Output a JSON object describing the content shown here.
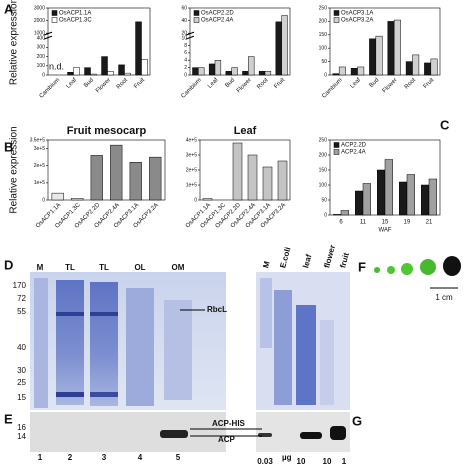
{
  "chart_data": [
    {
      "type": "bar",
      "ylabel": "Relative expression",
      "categories": [
        "Cambium",
        "Leaf",
        "Bud",
        "Flower",
        "Root",
        "Fruit"
      ],
      "series": [
        {
          "name": "OsACP1.1A",
          "color": "#1a1a1a",
          "values": [
            null,
            30,
            80,
            200,
            110,
            1900
          ]
        },
        {
          "name": "OsACP1.3C",
          "color": "#ffffff",
          "values": [
            null,
            80,
            10,
            40,
            20,
            170
          ]
        }
      ],
      "ylim": [
        0,
        3000
      ],
      "ybreak": [
        400,
        1000
      ],
      "yticks": [
        0,
        100,
        200,
        300,
        400,
        1000,
        2000,
        3000
      ],
      "annotations": [
        {
          "text": "n.d.",
          "category": "Cambium"
        }
      ]
    },
    {
      "type": "bar",
      "categories": [
        "Cambium",
        "Leaf",
        "Bud",
        "Flower",
        "Root",
        "Fruit"
      ],
      "series": [
        {
          "name": "OsACP2.2D",
          "color": "#1a1a1a",
          "values": [
            2,
            3,
            1,
            1,
            1,
            38
          ]
        },
        {
          "name": "OsACP2.4A",
          "color": "#d0d0d0",
          "values": [
            2,
            4,
            2,
            5,
            1,
            48
          ]
        }
      ],
      "ylim": [
        0,
        60
      ],
      "ybreak": [
        10,
        20
      ],
      "yticks": [
        0,
        2,
        4,
        6,
        8,
        10,
        20,
        40,
        60
      ]
    },
    {
      "type": "bar",
      "categories": [
        "Cambium",
        "Leaf",
        "Bud",
        "Flower",
        "Root",
        "Fruit"
      ],
      "series": [
        {
          "name": "OsACP3.1A",
          "color": "#1a1a1a",
          "values": [
            5,
            25,
            135,
            200,
            50,
            45
          ]
        },
        {
          "name": "OsACP3.2A",
          "color": "#d0d0d0",
          "values": [
            30,
            30,
            145,
            205,
            75,
            60
          ]
        }
      ],
      "ylim": [
        0,
        250
      ],
      "yticks": [
        0,
        50,
        100,
        150,
        200,
        250
      ]
    },
    {
      "type": "bar",
      "title": "Fruit mesocarp",
      "ylabel": "Relative expression",
      "categories": [
        "OsACP1.1A",
        "OsACP1.3C",
        "OsACP2.2D",
        "OsACP2.4A",
        "OsACP3.1A",
        "OsACP3.2A"
      ],
      "values": [
        40000,
        10000,
        260000,
        320000,
        220000,
        250000
      ],
      "colors": [
        "#e8e8e8",
        "#e8e8e8",
        "#8a8a8a",
        "#8a8a8a",
        "#8a8a8a",
        "#8a8a8a"
      ],
      "ylim": [
        0,
        350000
      ],
      "yticks": [
        0,
        {
          "value": 100000,
          "label": "1e+5"
        },
        {
          "value": 200000,
          "label": "2e+5"
        },
        {
          "value": 300000,
          "label": "3e+5"
        },
        {
          "value": 350000,
          "label": "3.5e+5"
        }
      ]
    },
    {
      "type": "bar",
      "title": "Leaf",
      "categories": [
        "OsACP1.1A",
        "OsACP1.3C",
        "OsACP2.2D",
        "OsACP2.4A",
        "OsACP3.1A",
        "OsACP3.2A"
      ],
      "values": [
        10000,
        0,
        380000,
        300000,
        220000,
        260000
      ],
      "colors": [
        "#e8e8e8",
        "#e8e8e8",
        "#c4c4c4",
        "#c4c4c4",
        "#c4c4c4",
        "#c4c4c4"
      ],
      "ylim": [
        0,
        400000
      ],
      "yticks": [
        0,
        {
          "value": 100000,
          "label": "1e+5"
        },
        {
          "value": 200000,
          "label": "2e+5"
        },
        {
          "value": 300000,
          "label": "3e+5"
        },
        {
          "value": 400000,
          "label": "4e+5"
        }
      ]
    },
    {
      "type": "bar",
      "xlabel": "WAF",
      "categories": [
        "6",
        "11",
        "15",
        "19",
        "21"
      ],
      "series": [
        {
          "name": "ACP2.2D",
          "color": "#1a1a1a",
          "values": [
            2,
            80,
            150,
            110,
            100
          ]
        },
        {
          "name": "ACP2.4A",
          "color": "#a0a0a0",
          "values": [
            15,
            105,
            185,
            135,
            120
          ]
        }
      ],
      "ylim": [
        0,
        250
      ],
      "yticks": [
        0,
        50,
        100,
        150,
        200,
        250
      ]
    }
  ],
  "figure": {
    "panel_labels": [
      "A",
      "B",
      "C",
      "D",
      "E",
      "F",
      "G"
    ],
    "gel_left_lanes": [
      "M",
      "TL",
      "TL",
      "OL",
      "OM"
    ],
    "gel_right_lanes": [
      "M",
      "E.coli",
      "leaf",
      "flower",
      "fruit"
    ],
    "markers": [
      "170",
      "72",
      "55",
      "40",
      "30",
      "25",
      "15"
    ],
    "blot_markers": [
      "16",
      "14"
    ],
    "rbcl": "RbcL",
    "acp_his": "ACP-HIS",
    "acp": "ACP",
    "lane_numbers": [
      "1",
      "2",
      "3",
      "4",
      "5"
    ],
    "ug_label": "µg",
    "amounts": [
      "0.03",
      "10",
      "10",
      "1"
    ],
    "scale": "1 cm"
  }
}
